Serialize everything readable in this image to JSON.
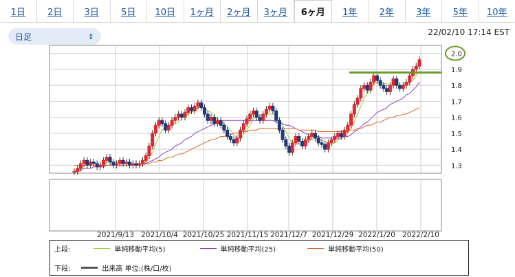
{
  "tabs": [
    {
      "label": "1日",
      "active": false
    },
    {
      "label": "2日",
      "active": false
    },
    {
      "label": "3日",
      "active": false
    },
    {
      "label": "5日",
      "active": false
    },
    {
      "label": "10日",
      "active": false
    },
    {
      "label": "1ヶ月",
      "active": false
    },
    {
      "label": "2ヶ月",
      "active": false
    },
    {
      "label": "3ヶ月",
      "active": false
    },
    {
      "label": "6ヶ月",
      "active": true
    },
    {
      "label": "1年",
      "active": false
    },
    {
      "label": "2年",
      "active": false
    },
    {
      "label": "3年",
      "active": false
    },
    {
      "label": "5年",
      "active": false
    },
    {
      "label": "10年",
      "active": false
    }
  ],
  "select": {
    "value": "日足",
    "icon": "chevron-updown-icon"
  },
  "timestamp": "22/02/10 17:14 EST",
  "chart_data": {
    "type": "candlestick",
    "title": "",
    "x_ticks": [
      "2021/9/13",
      "2021/10/4",
      "2021/10/25",
      "2021/11/15",
      "2021/12/7",
      "2021/12/29",
      "2022/1/20",
      "2022/2/10"
    ],
    "y_ticks": [
      "2.0",
      "1.9",
      "1.8",
      "1.7",
      "1.6",
      "1.5",
      "1.4",
      "1.3"
    ],
    "ylim": [
      1.25,
      2.05
    ],
    "grid": true,
    "closes": [
      1.26,
      1.28,
      1.31,
      1.33,
      1.3,
      1.32,
      1.31,
      1.29,
      1.3,
      1.33,
      1.35,
      1.32,
      1.3,
      1.31,
      1.33,
      1.31,
      1.32,
      1.3,
      1.31,
      1.3,
      1.31,
      1.33,
      1.36,
      1.42,
      1.5,
      1.55,
      1.58,
      1.56,
      1.52,
      1.55,
      1.58,
      1.6,
      1.62,
      1.6,
      1.63,
      1.66,
      1.64,
      1.67,
      1.69,
      1.66,
      1.62,
      1.58,
      1.6,
      1.56,
      1.58,
      1.55,
      1.52,
      1.48,
      1.46,
      1.44,
      1.47,
      1.52,
      1.56,
      1.59,
      1.62,
      1.64,
      1.6,
      1.58,
      1.62,
      1.65,
      1.67,
      1.64,
      1.58,
      1.52,
      1.46,
      1.42,
      1.38,
      1.44,
      1.48,
      1.45,
      1.42,
      1.46,
      1.48,
      1.5,
      1.47,
      1.44,
      1.43,
      1.4,
      1.44,
      1.46,
      1.48,
      1.5,
      1.48,
      1.52,
      1.55,
      1.62,
      1.68,
      1.72,
      1.78,
      1.8,
      1.77,
      1.82,
      1.86,
      1.83,
      1.8,
      1.78,
      1.76,
      1.8,
      1.84,
      1.8,
      1.78,
      1.8,
      1.82,
      1.86,
      1.9,
      1.92,
      1.96
    ],
    "series": [
      {
        "name": "単純移動平均(5)",
        "color": "#9acd32",
        "values": [
          1.26,
          1.27,
          1.28,
          1.3,
          1.3,
          1.31,
          1.31,
          1.31,
          1.3,
          1.31,
          1.32,
          1.32,
          1.32,
          1.32,
          1.32,
          1.31,
          1.31,
          1.31,
          1.31,
          1.31,
          1.31,
          1.31,
          1.32,
          1.35,
          1.38,
          1.43,
          1.48,
          1.52,
          1.54,
          1.55,
          1.56,
          1.56,
          1.57,
          1.59,
          1.61,
          1.62,
          1.63,
          1.64,
          1.66,
          1.66,
          1.66,
          1.64,
          1.63,
          1.6,
          1.59,
          1.57,
          1.56,
          1.54,
          1.52,
          1.49,
          1.47,
          1.47,
          1.49,
          1.52,
          1.55,
          1.59,
          1.6,
          1.61,
          1.61,
          1.62,
          1.62,
          1.62,
          1.61,
          1.59,
          1.55,
          1.51,
          1.47,
          1.44,
          1.44,
          1.43,
          1.43,
          1.45,
          1.45,
          1.46,
          1.47,
          1.47,
          1.46,
          1.45,
          1.44,
          1.43,
          1.44,
          1.46,
          1.47,
          1.49,
          1.51,
          1.53,
          1.57,
          1.62,
          1.67,
          1.72,
          1.75,
          1.78,
          1.81,
          1.82,
          1.82,
          1.81,
          1.81,
          1.8,
          1.8,
          1.8,
          1.8,
          1.8,
          1.81,
          1.82,
          1.83,
          1.86,
          1.89
        ]
      },
      {
        "name": "単純移動平均(25)",
        "color": "#8e3fc2",
        "values": [
          1.26,
          1.27,
          1.27,
          1.28,
          1.28,
          1.28,
          1.29,
          1.29,
          1.29,
          1.29,
          1.3,
          1.3,
          1.3,
          1.3,
          1.3,
          1.3,
          1.3,
          1.3,
          1.31,
          1.31,
          1.31,
          1.31,
          1.31,
          1.32,
          1.33,
          1.34,
          1.35,
          1.37,
          1.38,
          1.39,
          1.4,
          1.42,
          1.43,
          1.44,
          1.46,
          1.47,
          1.48,
          1.5,
          1.51,
          1.52,
          1.53,
          1.54,
          1.55,
          1.56,
          1.57,
          1.57,
          1.58,
          1.58,
          1.58,
          1.58,
          1.58,
          1.58,
          1.58,
          1.58,
          1.58,
          1.58,
          1.58,
          1.58,
          1.58,
          1.58,
          1.58,
          1.58,
          1.57,
          1.57,
          1.56,
          1.55,
          1.55,
          1.54,
          1.53,
          1.52,
          1.51,
          1.5,
          1.49,
          1.49,
          1.48,
          1.48,
          1.47,
          1.47,
          1.47,
          1.47,
          1.47,
          1.47,
          1.47,
          1.48,
          1.48,
          1.49,
          1.51,
          1.52,
          1.54,
          1.56,
          1.57,
          1.59,
          1.61,
          1.63,
          1.64,
          1.65,
          1.66,
          1.68,
          1.69,
          1.7,
          1.71,
          1.72,
          1.74,
          1.75,
          1.77,
          1.79,
          1.82
        ]
      },
      {
        "name": "単純移動平均(50)",
        "color": "#e0662b",
        "values": [
          1.3,
          1.3,
          1.3,
          1.3,
          1.3,
          1.3,
          1.3,
          1.3,
          1.3,
          1.3,
          1.3,
          1.3,
          1.3,
          1.3,
          1.3,
          1.3,
          1.3,
          1.3,
          1.3,
          1.3,
          1.3,
          1.3,
          1.31,
          1.31,
          1.32,
          1.32,
          1.33,
          1.33,
          1.34,
          1.35,
          1.35,
          1.36,
          1.37,
          1.37,
          1.38,
          1.39,
          1.4,
          1.41,
          1.42,
          1.43,
          1.44,
          1.45,
          1.46,
          1.46,
          1.47,
          1.48,
          1.48,
          1.49,
          1.49,
          1.5,
          1.5,
          1.51,
          1.51,
          1.51,
          1.52,
          1.52,
          1.52,
          1.53,
          1.53,
          1.53,
          1.53,
          1.53,
          1.53,
          1.53,
          1.53,
          1.53,
          1.53,
          1.53,
          1.53,
          1.52,
          1.52,
          1.52,
          1.52,
          1.52,
          1.52,
          1.51,
          1.51,
          1.51,
          1.51,
          1.51,
          1.51,
          1.51,
          1.51,
          1.51,
          1.51,
          1.52,
          1.52,
          1.53,
          1.53,
          1.54,
          1.55,
          1.55,
          1.56,
          1.57,
          1.57,
          1.58,
          1.59,
          1.6,
          1.6,
          1.61,
          1.61,
          1.62,
          1.62,
          1.63,
          1.64,
          1.65,
          1.66
        ]
      }
    ],
    "annotations": [
      {
        "type": "hline",
        "y": 1.88,
        "color": "#6a9a2a"
      },
      {
        "type": "circle",
        "label": "2.0",
        "color": "#6a9a2a"
      }
    ]
  },
  "legend": {
    "upper_label": "上段:",
    "lower_label": "下段:",
    "volume_label": "出来高 単位:(株/口/枚)",
    "volume_color": "#555555"
  }
}
